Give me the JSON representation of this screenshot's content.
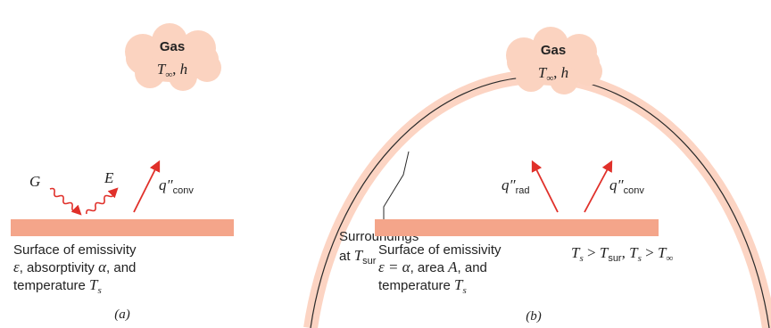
{
  "panel_a": {
    "gas": {
      "title": "Gas",
      "symbol": "T",
      "symbol_sub": "∞",
      "comma": ", ",
      "var": "h"
    },
    "irradiation": "G",
    "emission": "E",
    "convection": {
      "symbol": "q″",
      "sub": "conv"
    },
    "surface": {
      "line1": "Surface of emissivity",
      "line2": [
        "ε",
        ", absorptivity ",
        "α",
        ", and"
      ],
      "line3": [
        "temperature ",
        "T",
        "s"
      ]
    },
    "caption": "(a)"
  },
  "panel_b": {
    "gas": {
      "title": "Gas",
      "symbol": "T",
      "symbol_sub": "∞",
      "comma": ", ",
      "var": "h"
    },
    "radiation": {
      "symbol": "q″",
      "sub": "rad"
    },
    "convection": {
      "symbol": "q″",
      "sub": "conv"
    },
    "surroundings": {
      "line1": "Surroundings",
      "line2": [
        "at ",
        "T",
        "sur"
      ]
    },
    "surface": {
      "line1": "Surface of emissivity",
      "line2": [
        "ε = α",
        ", area ",
        "A",
        ", and"
      ],
      "line3": [
        "temperature ",
        "T",
        "s"
      ]
    },
    "condition": [
      "T",
      "s",
      " > ",
      "T",
      "sur",
      ", ",
      "T",
      "s",
      " > ",
      "T",
      "∞"
    ],
    "caption": "(b)"
  }
}
